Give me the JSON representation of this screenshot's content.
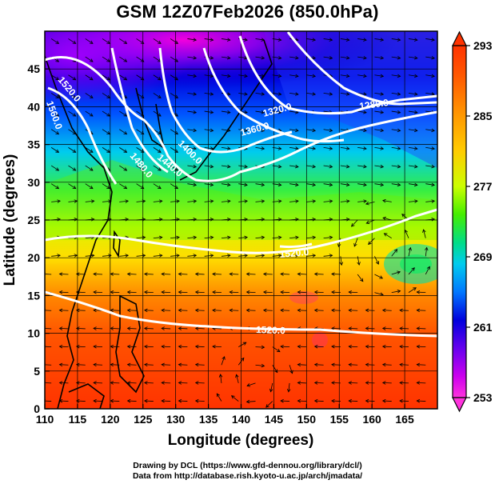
{
  "title": "GSM 12Z07Feb2026 (850.0hPa)",
  "credits": {
    "line1": "Drawing by DCL (https://www.gfd-dennou.org/library/dcl/)",
    "line2": "Data from http://database.rish.kyoto-u.ac.jp/arch/jmadata/"
  },
  "map": {
    "xlabel": "Longitude (degrees)",
    "ylabel": "Latitude  (degrees)",
    "lon_range": [
      110,
      170
    ],
    "lat_range": [
      0,
      50
    ],
    "lon_ticks": [
      "110",
      "115",
      "120",
      "125",
      "130",
      "135",
      "140",
      "145",
      "150",
      "155",
      "160",
      "165"
    ],
    "lat_ticks": [
      "0",
      "5",
      "10",
      "15",
      "20",
      "25",
      "30",
      "35",
      "40",
      "45"
    ],
    "grid": true
  },
  "colorbar": {
    "labels": [
      "293",
      "285",
      "277",
      "269",
      "261",
      "253"
    ],
    "range": [
      253,
      293
    ],
    "colors": [
      "#ff00ff",
      "#8800ff",
      "#0000ff",
      "#0066ff",
      "#00ccff",
      "#00ddaa",
      "#00dd00",
      "#99ff00",
      "#ffff00",
      "#ffaa00",
      "#ff6600",
      "#ff3300"
    ]
  },
  "contours": [
    {
      "label": "1520.0"
    },
    {
      "label": "1560.0"
    },
    {
      "label": "1480.0"
    },
    {
      "label": "1440.0"
    },
    {
      "label": "1400.0"
    },
    {
      "label": "1360.0"
    },
    {
      "label": "1320.0"
    },
    {
      "label": "1280.0"
    },
    {
      "label": "1520.0"
    },
    {
      "label": "1520.0"
    }
  ]
}
